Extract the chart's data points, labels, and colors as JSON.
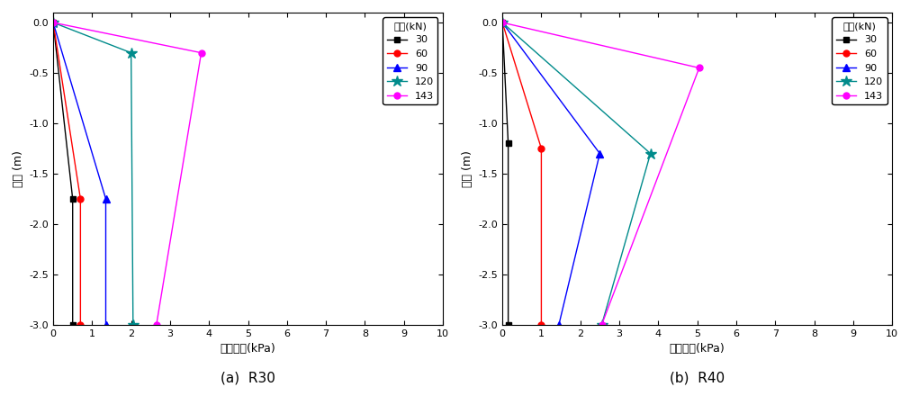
{
  "plots": [
    {
      "label": "(a)  R30",
      "series": [
        {
          "name": "30",
          "color": "#000000",
          "marker": "s",
          "markersize": 5,
          "x": [
            0.0,
            0.5,
            0.5
          ],
          "y": [
            0.0,
            -1.75,
            -3.0
          ]
        },
        {
          "name": "60",
          "color": "#ff0000",
          "marker": "o",
          "markersize": 5,
          "x": [
            0.0,
            0.7,
            0.7
          ],
          "y": [
            0.0,
            -1.75,
            -3.0
          ]
        },
        {
          "name": "90",
          "color": "#0000ff",
          "marker": "^",
          "markersize": 6,
          "x": [
            0.0,
            1.35,
            1.35
          ],
          "y": [
            0.0,
            -1.75,
            -3.0
          ]
        },
        {
          "name": "120",
          "color": "#008B8B",
          "marker": "*",
          "markersize": 9,
          "x": [
            0.0,
            2.0,
            2.05
          ],
          "y": [
            0.0,
            -0.3,
            -3.0
          ]
        },
        {
          "name": "143",
          "color": "#ff00ff",
          "marker": "o",
          "markersize": 5,
          "x": [
            0.0,
            3.8,
            2.65
          ],
          "y": [
            0.0,
            -0.3,
            -3.0
          ]
        }
      ]
    },
    {
      "label": "(b)  R40",
      "series": [
        {
          "name": "30",
          "color": "#000000",
          "marker": "s",
          "markersize": 5,
          "x": [
            0.0,
            0.15,
            0.15
          ],
          "y": [
            0.0,
            -1.2,
            -3.0
          ]
        },
        {
          "name": "60",
          "color": "#ff0000",
          "marker": "o",
          "markersize": 5,
          "x": [
            0.0,
            1.0,
            1.0
          ],
          "y": [
            0.0,
            -1.25,
            -3.0
          ]
        },
        {
          "name": "90",
          "color": "#0000ff",
          "marker": "^",
          "markersize": 6,
          "x": [
            0.0,
            2.5,
            1.45
          ],
          "y": [
            0.0,
            -1.3,
            -3.0
          ]
        },
        {
          "name": "120",
          "color": "#008B8B",
          "marker": "*",
          "markersize": 9,
          "x": [
            0.0,
            3.8,
            2.55
          ],
          "y": [
            0.0,
            -1.3,
            -3.0
          ]
        },
        {
          "name": "143",
          "color": "#ff00ff",
          "marker": "o",
          "markersize": 5,
          "x": [
            0.0,
            5.05,
            2.55
          ],
          "y": [
            0.0,
            -0.45,
            -3.0
          ]
        }
      ]
    }
  ],
  "xlabel": "수평토압(kPa)",
  "ylabel": "심도 (m)",
  "xlim": [
    0,
    10
  ],
  "ylim": [
    -3.0,
    0.1
  ],
  "xticks": [
    0,
    1,
    2,
    3,
    4,
    5,
    6,
    7,
    8,
    9,
    10
  ],
  "yticks": [
    0.0,
    -0.5,
    -1.0,
    -1.5,
    -2.0,
    -2.5,
    -3.0
  ],
  "legend_title": "하중(kN)",
  "figsize": [
    10.12,
    4.4
  ],
  "dpi": 100,
  "background_color": "#ffffff"
}
